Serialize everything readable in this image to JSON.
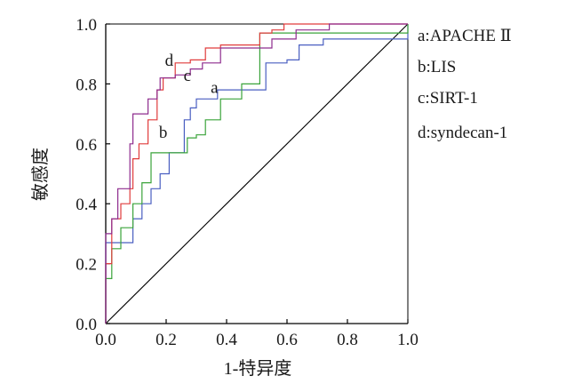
{
  "chart_data": {
    "type": "line",
    "title": "",
    "xlabel": "1-特异度",
    "ylabel": "敏感度",
    "xlim": [
      0,
      1
    ],
    "ylim": [
      0,
      1
    ],
    "x_ticks": [
      "0.0",
      "0.2",
      "0.4",
      "0.6",
      "0.8",
      "1.0"
    ],
    "y_ticks": [
      "0.0",
      "0.2",
      "0.4",
      "0.6",
      "0.8",
      "1.0"
    ],
    "grid": false,
    "legend_position": "right",
    "legend": [
      "a:APACHE Ⅱ",
      "b:LIS",
      "c:SIRT-1",
      "d:syndecan-1"
    ],
    "reference_line": {
      "from": [
        0,
        0
      ],
      "to": [
        1,
        1
      ],
      "color": "#000000"
    },
    "series": [
      {
        "key": "a",
        "name": "APACHE Ⅱ",
        "color": "#4a5fc1",
        "label_at": [
          0.36,
          0.77
        ],
        "points": [
          [
            0,
            0
          ],
          [
            0,
            0.27
          ],
          [
            0.09,
            0.27
          ],
          [
            0.09,
            0.35
          ],
          [
            0.12,
            0.35
          ],
          [
            0.12,
            0.4
          ],
          [
            0.15,
            0.4
          ],
          [
            0.15,
            0.45
          ],
          [
            0.18,
            0.45
          ],
          [
            0.18,
            0.5
          ],
          [
            0.21,
            0.5
          ],
          [
            0.21,
            0.57
          ],
          [
            0.26,
            0.57
          ],
          [
            0.26,
            0.68
          ],
          [
            0.28,
            0.68
          ],
          [
            0.28,
            0.72
          ],
          [
            0.3,
            0.72
          ],
          [
            0.3,
            0.75
          ],
          [
            0.37,
            0.75
          ],
          [
            0.37,
            0.78
          ],
          [
            0.53,
            0.78
          ],
          [
            0.53,
            0.87
          ],
          [
            0.6,
            0.87
          ],
          [
            0.6,
            0.88
          ],
          [
            0.64,
            0.88
          ],
          [
            0.64,
            0.93
          ],
          [
            0.72,
            0.93
          ],
          [
            0.72,
            0.95
          ],
          [
            1,
            0.95
          ],
          [
            1,
            1
          ]
        ]
      },
      {
        "key": "b",
        "name": "LIS",
        "color": "#3aa33a",
        "label_at": [
          0.19,
          0.62
        ],
        "points": [
          [
            0,
            0
          ],
          [
            0,
            0.15
          ],
          [
            0.02,
            0.15
          ],
          [
            0.02,
            0.25
          ],
          [
            0.05,
            0.25
          ],
          [
            0.05,
            0.32
          ],
          [
            0.09,
            0.32
          ],
          [
            0.09,
            0.4
          ],
          [
            0.12,
            0.4
          ],
          [
            0.12,
            0.47
          ],
          [
            0.15,
            0.47
          ],
          [
            0.15,
            0.57
          ],
          [
            0.27,
            0.57
          ],
          [
            0.27,
            0.62
          ],
          [
            0.3,
            0.62
          ],
          [
            0.3,
            0.63
          ],
          [
            0.33,
            0.63
          ],
          [
            0.33,
            0.68
          ],
          [
            0.38,
            0.68
          ],
          [
            0.38,
            0.75
          ],
          [
            0.45,
            0.75
          ],
          [
            0.45,
            0.8
          ],
          [
            0.51,
            0.8
          ],
          [
            0.51,
            0.97
          ],
          [
            1,
            0.97
          ],
          [
            1,
            1
          ]
        ]
      },
      {
        "key": "c",
        "name": "SIRT-1",
        "color": "#e03c3c",
        "label_at": [
          0.27,
          0.81
        ],
        "points": [
          [
            0,
            0
          ],
          [
            0,
            0.2
          ],
          [
            0.02,
            0.2
          ],
          [
            0.02,
            0.35
          ],
          [
            0.05,
            0.35
          ],
          [
            0.05,
            0.4
          ],
          [
            0.08,
            0.4
          ],
          [
            0.08,
            0.45
          ],
          [
            0.09,
            0.45
          ],
          [
            0.09,
            0.55
          ],
          [
            0.11,
            0.55
          ],
          [
            0.11,
            0.6
          ],
          [
            0.14,
            0.6
          ],
          [
            0.14,
            0.68
          ],
          [
            0.17,
            0.68
          ],
          [
            0.17,
            0.78
          ],
          [
            0.19,
            0.78
          ],
          [
            0.19,
            0.82
          ],
          [
            0.23,
            0.82
          ],
          [
            0.23,
            0.87
          ],
          [
            0.28,
            0.87
          ],
          [
            0.28,
            0.88
          ],
          [
            0.33,
            0.88
          ],
          [
            0.33,
            0.92
          ],
          [
            0.38,
            0.92
          ],
          [
            0.38,
            0.93
          ],
          [
            0.51,
            0.93
          ],
          [
            0.51,
            0.97
          ],
          [
            0.55,
            0.97
          ],
          [
            0.55,
            0.98
          ],
          [
            0.59,
            0.98
          ],
          [
            0.59,
            1
          ],
          [
            1,
            1
          ]
        ]
      },
      {
        "key": "d",
        "name": "syndecan-1",
        "color": "#8e2c8e",
        "label_at": [
          0.21,
          0.86
        ],
        "points": [
          [
            0,
            0
          ],
          [
            0,
            0.3
          ],
          [
            0.02,
            0.3
          ],
          [
            0.02,
            0.35
          ],
          [
            0.04,
            0.35
          ],
          [
            0.04,
            0.45
          ],
          [
            0.08,
            0.45
          ],
          [
            0.08,
            0.6
          ],
          [
            0.09,
            0.6
          ],
          [
            0.09,
            0.7
          ],
          [
            0.14,
            0.7
          ],
          [
            0.14,
            0.75
          ],
          [
            0.17,
            0.75
          ],
          [
            0.17,
            0.78
          ],
          [
            0.18,
            0.78
          ],
          [
            0.18,
            0.82
          ],
          [
            0.23,
            0.82
          ],
          [
            0.23,
            0.83
          ],
          [
            0.28,
            0.83
          ],
          [
            0.28,
            0.85
          ],
          [
            0.32,
            0.85
          ],
          [
            0.32,
            0.87
          ],
          [
            0.38,
            0.87
          ],
          [
            0.38,
            0.92
          ],
          [
            0.55,
            0.92
          ],
          [
            0.55,
            0.95
          ],
          [
            0.63,
            0.95
          ],
          [
            0.63,
            0.98
          ],
          [
            0.74,
            0.98
          ],
          [
            0.74,
            1
          ],
          [
            1,
            1
          ]
        ]
      }
    ]
  }
}
